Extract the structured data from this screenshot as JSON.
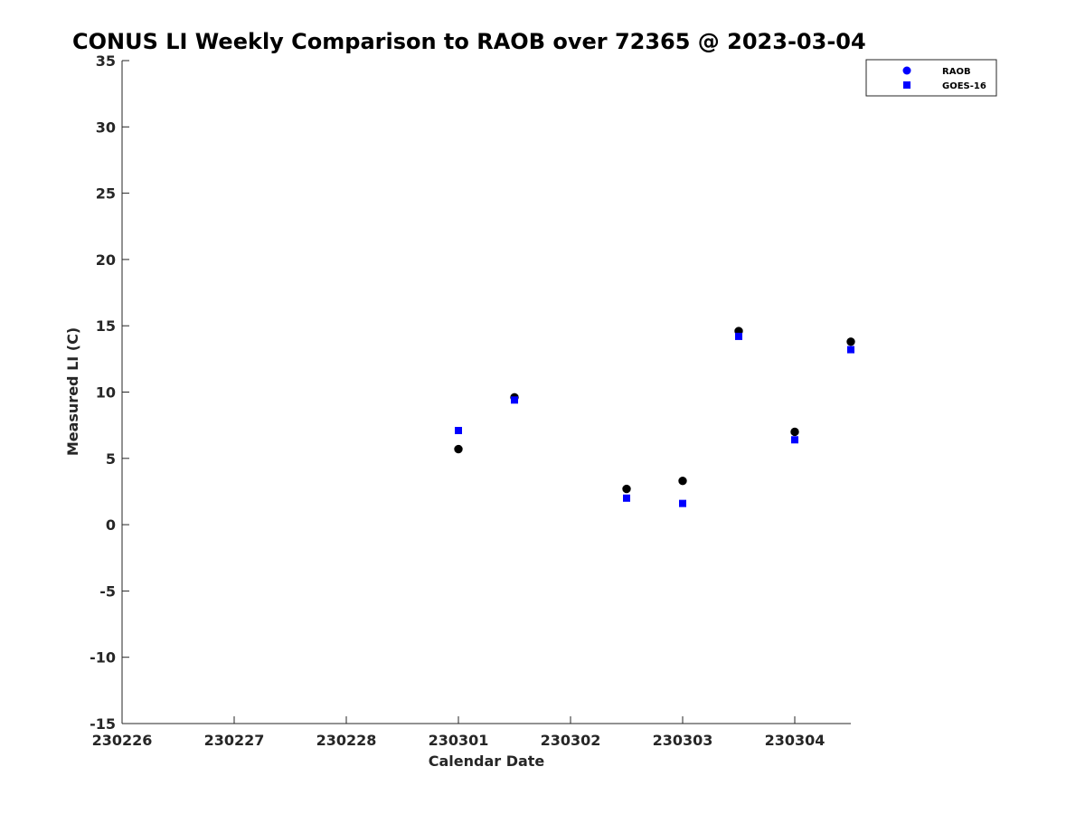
{
  "chart_data": {
    "type": "scatter",
    "title": "CONUS LI Weekly Comparison to RAOB over 72365 @ 2023-03-04",
    "xlabel": "Calendar Date",
    "ylabel": "Measured LI (C)",
    "xlim": [
      "2023-02-26",
      "2023-03-04 12:00"
    ],
    "ylim": [
      -15,
      35
    ],
    "x_ticks": [
      {
        "at": "2023-02-26",
        "label": "230226"
      },
      {
        "at": "2023-02-27",
        "label": "230227"
      },
      {
        "at": "2023-02-28",
        "label": "230228"
      },
      {
        "at": "2023-03-01",
        "label": "230301"
      },
      {
        "at": "2023-03-02",
        "label": "230302"
      },
      {
        "at": "2023-03-03",
        "label": "230303"
      },
      {
        "at": "2023-03-04",
        "label": "230304"
      }
    ],
    "y_ticks": [
      35,
      30,
      25,
      20,
      15,
      10,
      5,
      0,
      -5,
      -10,
      -15
    ],
    "grid": false,
    "legend_position": "top-right",
    "series": [
      {
        "name": "RAOB",
        "marker": "circle",
        "color": "#000000",
        "legend_color": "#0000ff",
        "points": [
          {
            "x": "2023-03-01 00:00",
            "y": 5.7
          },
          {
            "x": "2023-03-01 12:00",
            "y": 9.6
          },
          {
            "x": "2023-03-02 12:00",
            "y": 2.7
          },
          {
            "x": "2023-03-03 00:00",
            "y": 3.3
          },
          {
            "x": "2023-03-03 12:00",
            "y": 14.6
          },
          {
            "x": "2023-03-04 00:00",
            "y": 7.0
          },
          {
            "x": "2023-03-04 12:00",
            "y": 13.8
          }
        ]
      },
      {
        "name": "GOES-16",
        "marker": "square",
        "color": "#0000ff",
        "legend_color": "#0000ff",
        "points": [
          {
            "x": "2023-03-01 00:00",
            "y": 7.1
          },
          {
            "x": "2023-03-01 12:00",
            "y": 9.4
          },
          {
            "x": "2023-03-02 12:00",
            "y": 2.0
          },
          {
            "x": "2023-03-03 00:00",
            "y": 1.6
          },
          {
            "x": "2023-03-03 12:00",
            "y": 14.2
          },
          {
            "x": "2023-03-04 00:00",
            "y": 6.4
          },
          {
            "x": "2023-03-04 12:00",
            "y": 13.2
          }
        ]
      }
    ]
  }
}
